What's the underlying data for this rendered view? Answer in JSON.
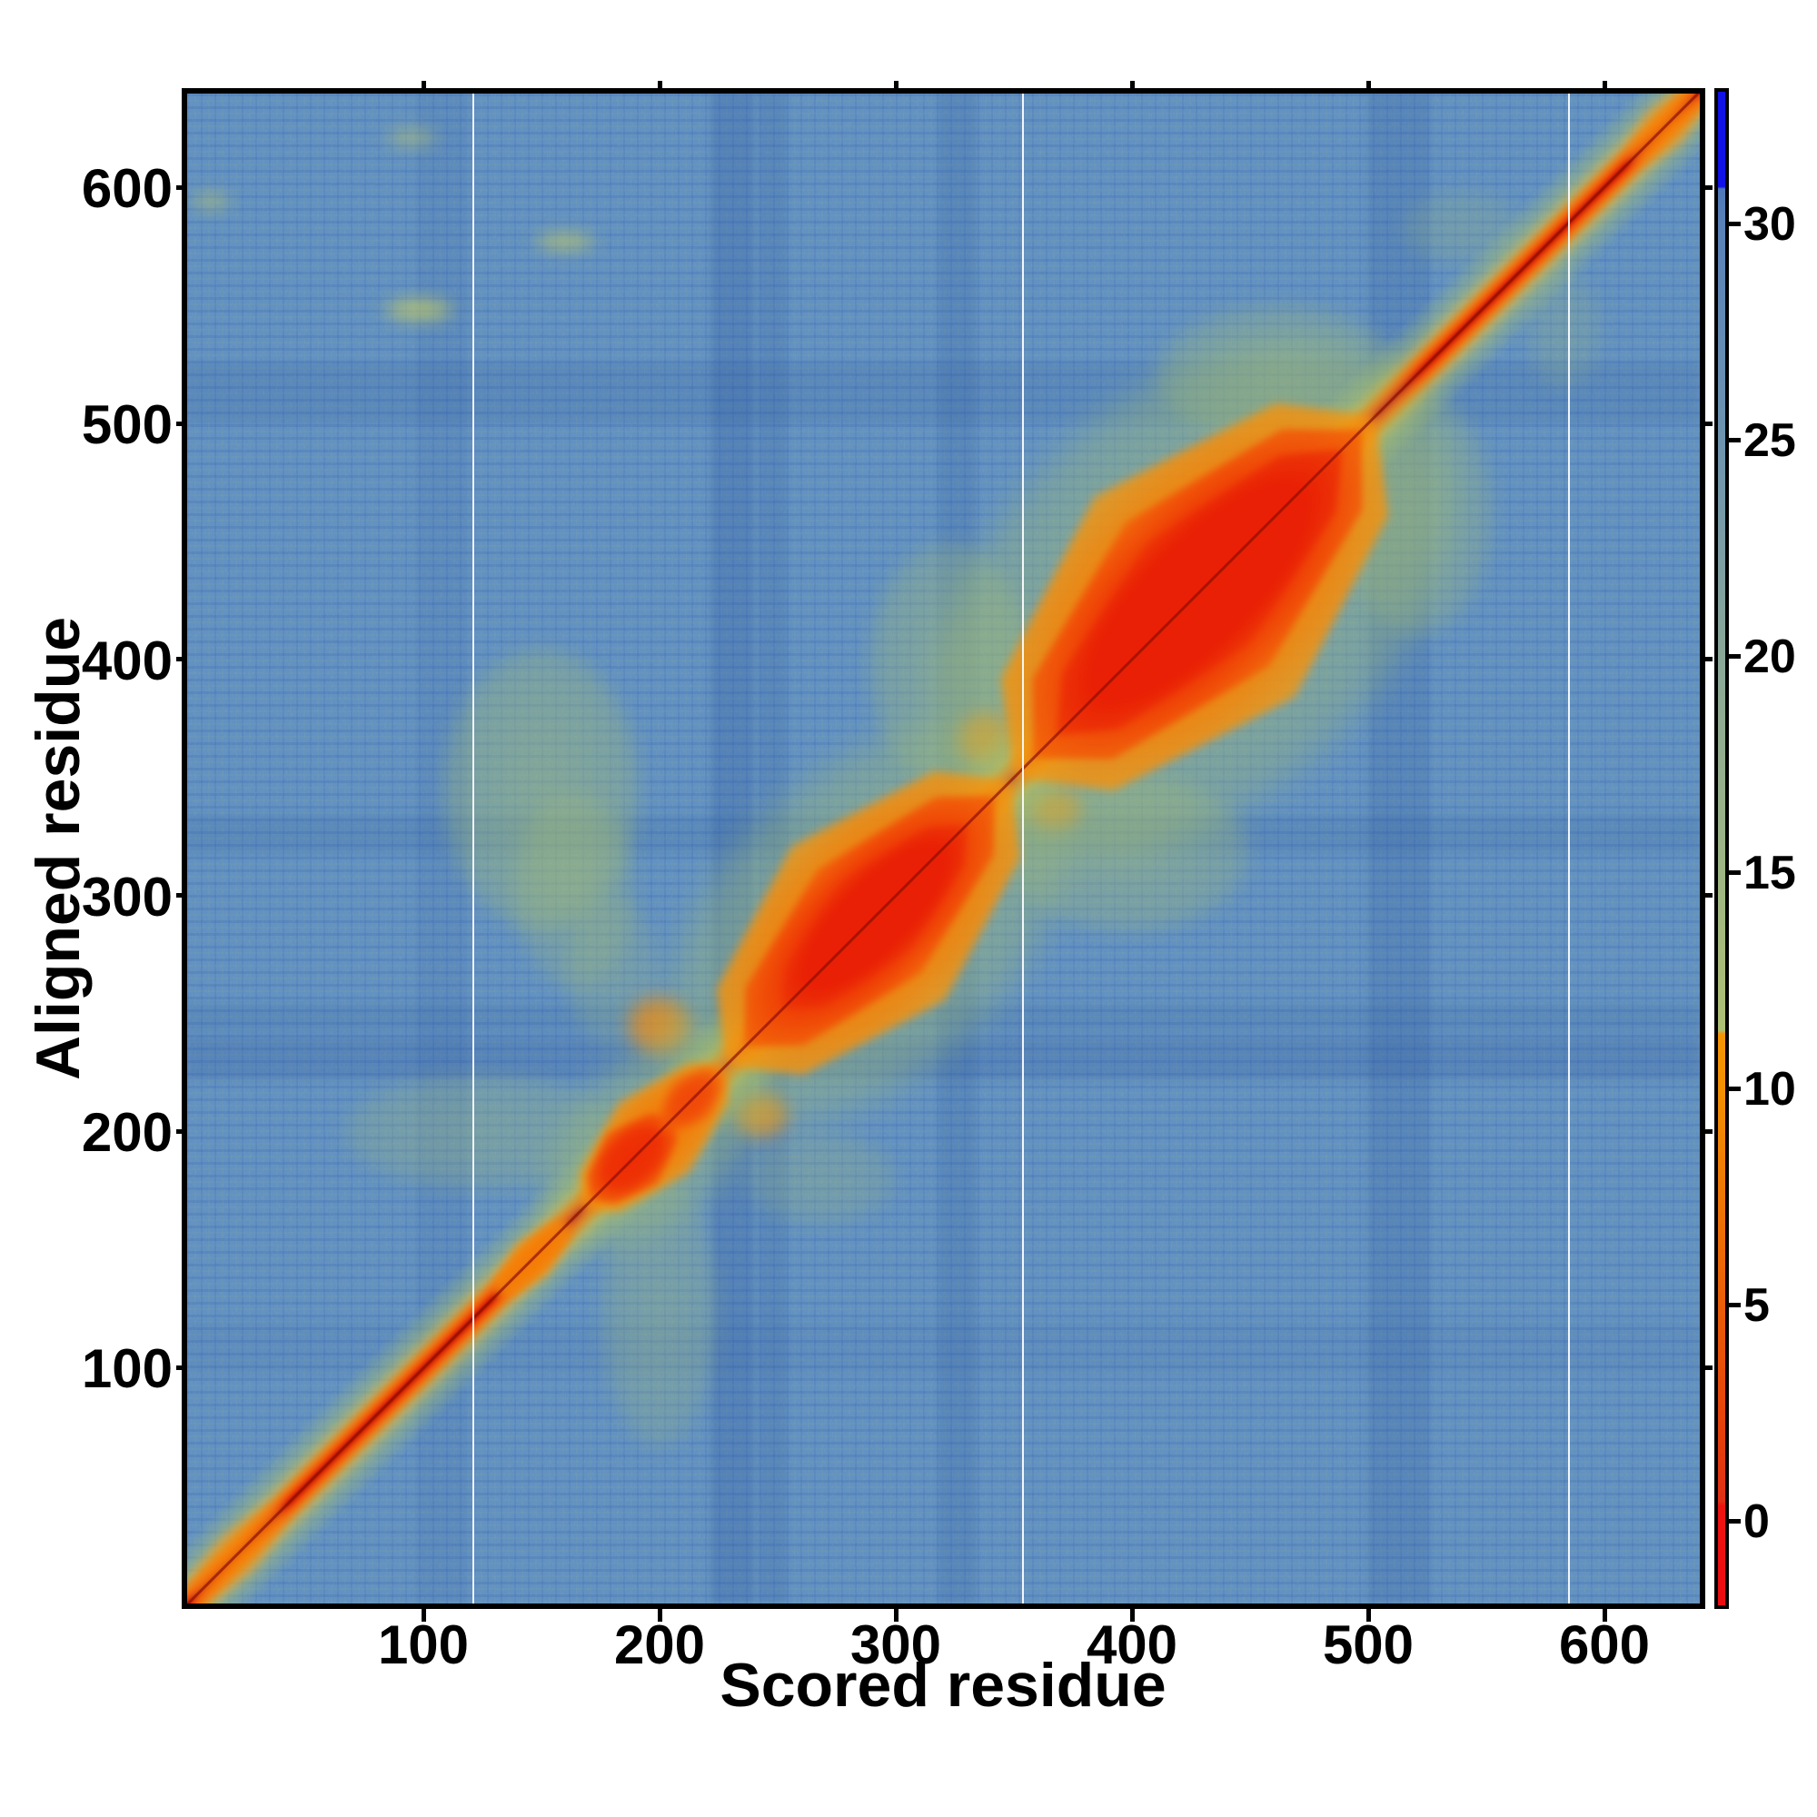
{
  "figure": {
    "background_color": "#ffffff",
    "kind": "residue alignment-error heatmap"
  },
  "chart_data": {
    "type": "heatmap",
    "title": "",
    "xlabel": "Scored residue",
    "ylabel": "Aligned residue",
    "x_range": [
      0,
      640
    ],
    "y_range": [
      0,
      640
    ],
    "x_tick_values": [
      100,
      200,
      300,
      400,
      500,
      600
    ],
    "x_tick_labels": [
      "100",
      "200",
      "300",
      "400",
      "500",
      "600"
    ],
    "y_tick_values": [
      100,
      200,
      300,
      400,
      500,
      600
    ],
    "y_tick_labels": [
      "100",
      "200",
      "300",
      "400",
      "500",
      "600"
    ],
    "grid": "three vertical white gridlines only",
    "white_gridlines_x": [
      121,
      354,
      585
    ],
    "background_value_range": [
      24,
      29
    ],
    "background_color_hex": "#6191c3",
    "diagonal": {
      "from": 0,
      "to": 640,
      "meaning": "self-alignment low-error band (value ~0-2 core, ~5-8 fringe)",
      "core_color": "#a80f04",
      "band_color": "#ee2e05",
      "fringe_color": "#f5830a",
      "glow_color": "#a9c16e"
    },
    "domains": [
      {
        "start": 0,
        "end": 42,
        "perp": 10,
        "kind": "orange-weak"
      },
      {
        "start": 130,
        "end": 162,
        "perp": 9,
        "kind": "orange"
      },
      {
        "start": 156,
        "end": 240,
        "perp": 34,
        "kind": "halo"
      },
      {
        "start": 167,
        "end": 228,
        "perp": 21,
        "kind": "orange"
      },
      {
        "start": 171,
        "end": 206,
        "perp": 15,
        "kind": "red"
      },
      {
        "start": 201,
        "end": 226,
        "perp": 11,
        "kind": "red-weak"
      },
      {
        "start": 214,
        "end": 362,
        "perp": 64,
        "kind": "halo"
      },
      {
        "start": 228,
        "end": 349,
        "perp": 46,
        "kind": "orange"
      },
      {
        "start": 236,
        "end": 342,
        "perp": 31,
        "kind": "red"
      },
      {
        "start": 252,
        "end": 330,
        "perp": 20,
        "kind": "red-intense"
      },
      {
        "start": 334,
        "end": 518,
        "perp": 85,
        "kind": "halo"
      },
      {
        "start": 350,
        "end": 503,
        "perp": 60,
        "kind": "orange"
      },
      {
        "start": 358,
        "end": 497,
        "perp": 43,
        "kind": "red"
      },
      {
        "start": 368,
        "end": 489,
        "perp": 30,
        "kind": "red-intense"
      },
      {
        "start": 610,
        "end": 641,
        "perp": 10,
        "kind": "orange-weak"
      }
    ],
    "dark_bands": [
      {
        "pos": 231,
        "half": 9,
        "alpha": 0.2
      },
      {
        "pos": 248,
        "half": 6,
        "alpha": 0.14
      },
      {
        "pos": 326,
        "half": 8,
        "alpha": 0.14
      },
      {
        "pos": 513,
        "half": 13,
        "alpha": 0.15
      },
      {
        "pos": 108,
        "half": 11,
        "alpha": 0.08
      }
    ],
    "accents": [
      {
        "x": 150,
        "y": 345,
        "rx": 42,
        "ry": 60,
        "a": 0.45,
        "c": "g"
      },
      {
        "x": 164,
        "y": 302,
        "rx": 26,
        "ry": 42,
        "a": 0.32,
        "c": "g"
      },
      {
        "x": 322,
        "y": 398,
        "rx": 34,
        "ry": 52,
        "a": 0.4,
        "c": "g"
      },
      {
        "x": 398,
        "y": 318,
        "rx": 52,
        "ry": 34,
        "a": 0.4,
        "c": "g"
      },
      {
        "x": 521,
        "y": 462,
        "rx": 32,
        "ry": 52,
        "a": 0.36,
        "c": "g"
      },
      {
        "x": 462,
        "y": 521,
        "rx": 52,
        "ry": 30,
        "a": 0.36,
        "c": "g"
      },
      {
        "x": 124,
        "y": 200,
        "rx": 58,
        "ry": 25,
        "a": 0.3,
        "c": "g"
      },
      {
        "x": 200,
        "y": 124,
        "rx": 25,
        "ry": 58,
        "a": 0.3,
        "c": "g"
      },
      {
        "x": 268,
        "y": 180,
        "rx": 32,
        "ry": 20,
        "a": 0.26,
        "c": "g"
      },
      {
        "x": 180,
        "y": 268,
        "rx": 20,
        "ry": 32,
        "a": 0.26,
        "c": "g"
      },
      {
        "x": 540,
        "y": 583,
        "rx": 26,
        "ry": 16,
        "a": 0.22,
        "c": "g"
      },
      {
        "x": 583,
        "y": 540,
        "rx": 16,
        "ry": 26,
        "a": 0.22,
        "c": "g"
      },
      {
        "x": 98,
        "y": 548,
        "rx": 15,
        "ry": 5,
        "a": 0.75,
        "c": "y"
      },
      {
        "x": 160,
        "y": 577,
        "rx": 13,
        "ry": 4,
        "a": 0.7,
        "c": "y"
      },
      {
        "x": 95,
        "y": 621,
        "rx": 11,
        "ry": 4,
        "a": 0.5,
        "c": "y"
      },
      {
        "x": 10,
        "y": 594,
        "rx": 9,
        "ry": 4,
        "a": 0.5,
        "c": "y"
      },
      {
        "x": 200,
        "y": 245,
        "rx": 14,
        "ry": 13,
        "a": 0.85,
        "c": "o"
      },
      {
        "x": 243,
        "y": 207,
        "rx": 12,
        "ry": 10,
        "a": 0.8,
        "c": "o"
      },
      {
        "x": 338,
        "y": 366,
        "rx": 12,
        "ry": 12,
        "a": 0.75,
        "c": "o"
      },
      {
        "x": 367,
        "y": 337,
        "rx": 12,
        "ry": 9,
        "a": 0.7,
        "c": "o"
      }
    ],
    "colorbar": {
      "tick_values": [
        0,
        5,
        10,
        15,
        20,
        25,
        30
      ],
      "tick_labels": [
        "0",
        "5",
        "10",
        "15",
        "20",
        "25",
        "30"
      ],
      "value_range": [
        -1.9,
        33.1
      ],
      "clip_blue_above": 30.8,
      "gradient": [
        [
          33.1,
          "#1012e6"
        ],
        [
          30.85,
          "#1012e6"
        ],
        [
          30.8,
          "#4e79b7"
        ],
        [
          30.0,
          "#5a82b8"
        ],
        [
          25.0,
          "#6e94b0"
        ],
        [
          20.0,
          "#8aa898"
        ],
        [
          15.0,
          "#9eb684"
        ],
        [
          11.35,
          "#aec074"
        ],
        [
          11.25,
          "#f49504"
        ],
        [
          10.0,
          "#f29002"
        ],
        [
          5.0,
          "#ea5e08"
        ],
        [
          2.0,
          "#e4400a"
        ],
        [
          0.45,
          "#e13016"
        ],
        [
          0.35,
          "#ee1310"
        ],
        [
          -1.9,
          "#eb0d11"
        ]
      ],
      "legend_position": "right"
    }
  }
}
